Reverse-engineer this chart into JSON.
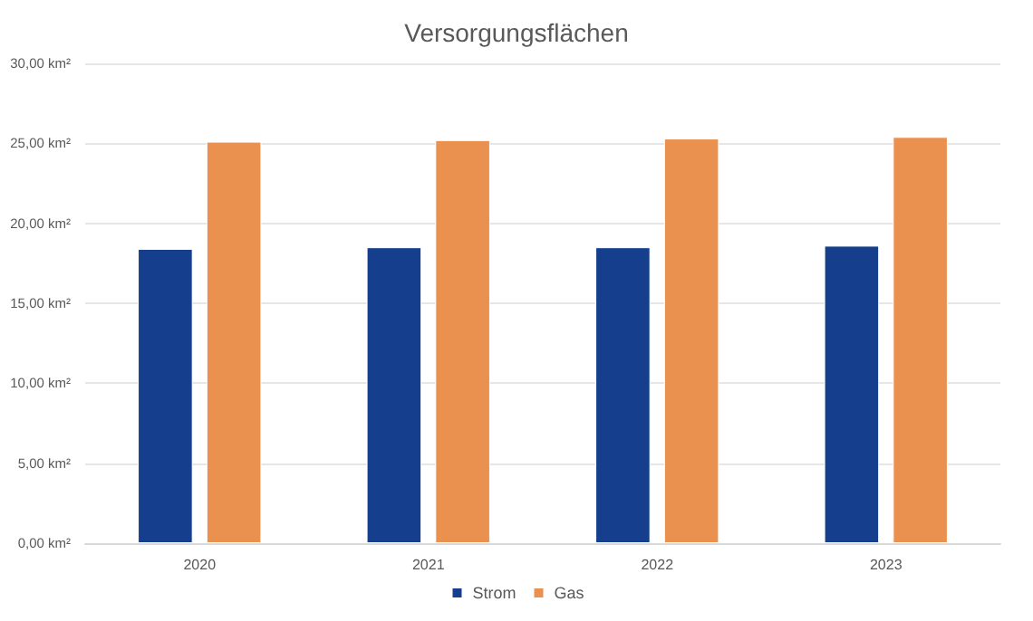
{
  "chart_data": {
    "type": "bar",
    "title": "Versorgungsflächen",
    "categories": [
      "2020",
      "2021",
      "2022",
      "2023"
    ],
    "series": [
      {
        "name": "Strom",
        "color": "#153f8c",
        "values": [
          18.4,
          18.5,
          18.5,
          18.6
        ]
      },
      {
        "name": "Gas",
        "color": "#eb9150",
        "values": [
          25.1,
          25.2,
          25.3,
          25.4
        ]
      }
    ],
    "ylim": [
      0,
      30
    ],
    "yticks": [
      {
        "value": 0,
        "label": "0,00 km²"
      },
      {
        "value": 5,
        "label": "5,00 km²"
      },
      {
        "value": 10,
        "label": "10,00 km²"
      },
      {
        "value": 15,
        "label": "15,00 km²"
      },
      {
        "value": 20,
        "label": "20,00 km²"
      },
      {
        "value": 25,
        "label": "25,00 km²"
      },
      {
        "value": 30,
        "label": "30,00 km²"
      }
    ],
    "grid": "y",
    "legend": "bottom"
  }
}
